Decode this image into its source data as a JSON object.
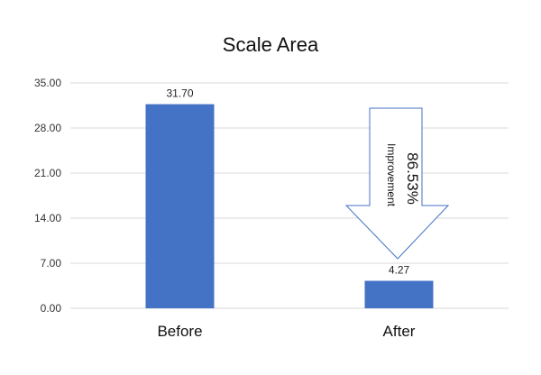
{
  "chart_data": {
    "type": "bar",
    "title": "Scale Area",
    "categories": [
      "Before",
      "After"
    ],
    "values": [
      31.7,
      4.27
    ],
    "value_labels": [
      "31.70",
      "4.27"
    ],
    "y_ticks": [
      "0.00",
      "7.00",
      "14.00",
      "21.00",
      "28.00",
      "35.00"
    ],
    "ylim": [
      0,
      35
    ],
    "grid": true,
    "bar_color": "#4472C4",
    "annotation": {
      "value": "86.53%",
      "text": "Improvement",
      "shape": "down-arrow"
    }
  }
}
